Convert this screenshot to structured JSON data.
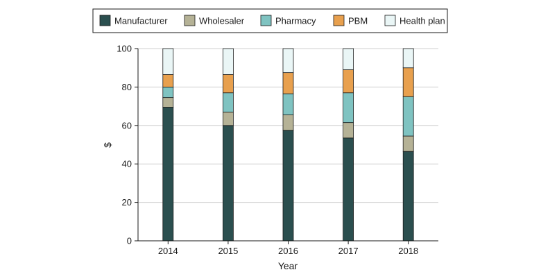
{
  "chart_data": {
    "type": "bar",
    "stacked": true,
    "categories": [
      "2014",
      "2015",
      "2016",
      "2017",
      "2018"
    ],
    "series": [
      {
        "name": "Manufacturer",
        "color": "#2b4f4f",
        "values": [
          69.5,
          60.0,
          57.5,
          53.5,
          46.5
        ]
      },
      {
        "name": "Wholesaler",
        "color": "#b5b296",
        "values": [
          5.0,
          7.0,
          8.0,
          8.0,
          8.0
        ]
      },
      {
        "name": "Pharmacy",
        "color": "#7fc3c1",
        "values": [
          5.5,
          10.0,
          11.0,
          15.5,
          20.5
        ]
      },
      {
        "name": "PBM",
        "color": "#e8a04e",
        "values": [
          6.5,
          9.5,
          11.0,
          12.0,
          15.0
        ]
      },
      {
        "name": "Health plan",
        "color": "#eaf6f6",
        "values": [
          13.5,
          13.5,
          12.5,
          11.0,
          10.0
        ]
      }
    ],
    "xlabel": "Year",
    "ylabel": "$",
    "ylim": [
      0,
      100
    ],
    "yticks": [
      0,
      20,
      40,
      60,
      80,
      100
    ],
    "grid": true,
    "legend_position": "top"
  }
}
